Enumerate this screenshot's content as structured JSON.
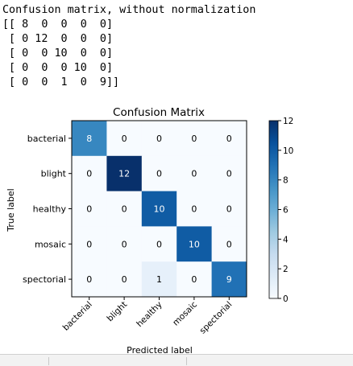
{
  "console_output": {
    "lines": [
      "Confusion matrix, without normalization",
      "[[ 8  0  0  0  0]",
      " [ 0 12  0  0  0]",
      " [ 0  0 10  0  0]",
      " [ 0  0  0 10  0]",
      " [ 0  0  1  0  9]]"
    ]
  },
  "chart_data": {
    "type": "heatmap",
    "title": "Confusion Matrix",
    "xlabel": "Predicted label",
    "ylabel": "True label",
    "x_categories": [
      "bacterial",
      "blight",
      "healthy",
      "mosaic",
      "spectorial"
    ],
    "y_categories": [
      "bacterial",
      "blight",
      "healthy",
      "mosaic",
      "spectorial"
    ],
    "matrix": [
      [
        8,
        0,
        0,
        0,
        0
      ],
      [
        0,
        12,
        0,
        0,
        0
      ],
      [
        0,
        0,
        10,
        0,
        0
      ],
      [
        0,
        0,
        0,
        10,
        0
      ],
      [
        0,
        0,
        1,
        0,
        9
      ]
    ],
    "colormap": "Blues",
    "colorbar": {
      "ticks": [
        0,
        2,
        4,
        6,
        8,
        10,
        12
      ],
      "range": [
        0,
        12
      ]
    },
    "xtick_rotation_deg": 45
  }
}
